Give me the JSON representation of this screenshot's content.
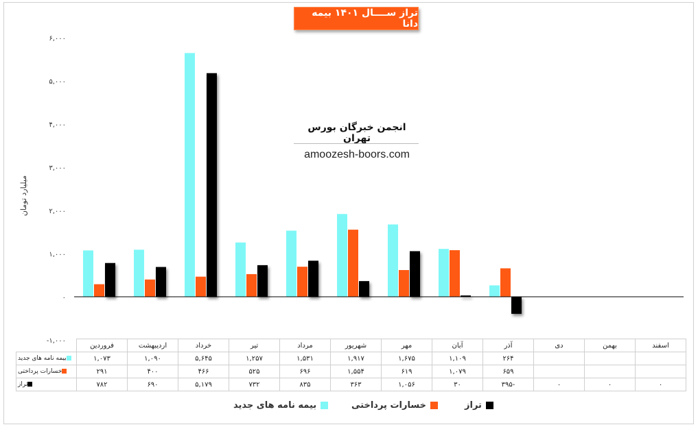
{
  "title": "تراز ســــال ۱۴۰۱ بیمه دانا",
  "watermark": {
    "line1": "انجمن خبرگان بورس تهران",
    "line2": "amoozesh-boors.com"
  },
  "colors": {
    "new_policies": "#7ff7f7",
    "claims": "#ff5a14",
    "balance": "#000000",
    "title_bg": "#ff5a14"
  },
  "chart_data": {
    "type": "bar",
    "ylabel": "میلیارد تومان",
    "ylim": [
      -1000,
      6000
    ],
    "yticks": [
      -1000,
      0,
      1000,
      2000,
      3000,
      4000,
      5000,
      6000
    ],
    "ytick_labels": [
      "-۱,۰۰۰",
      "۰",
      "۱,۰۰۰",
      "۲,۰۰۰",
      "۳,۰۰۰",
      "۴,۰۰۰",
      "۵,۰۰۰",
      "۶,۰۰۰"
    ],
    "categories": [
      "فروردین",
      "اردیبهشت",
      "خرداد",
      "تیر",
      "مرداد",
      "شهریور",
      "مهر",
      "آبان",
      "آذر",
      "دی",
      "بهمن",
      "اسفند"
    ],
    "series": [
      {
        "name": "بیمه نامه های جدید",
        "values": [
          1073,
          1090,
          5645,
          1257,
          1531,
          1917,
          1675,
          1109,
          264,
          null,
          null,
          null
        ],
        "labels": [
          "۱,۰۷۳",
          "۱,۰۹۰",
          "۵,۶۴۵",
          "۱,۲۵۷",
          "۱,۵۳۱",
          "۱,۹۱۷",
          "۱,۶۷۵",
          "۱,۱۰۹",
          "۲۶۴",
          "",
          "",
          ""
        ]
      },
      {
        "name": "خسارات پرداختی",
        "values": [
          291,
          400,
          466,
          525,
          696,
          1554,
          619,
          1079,
          659,
          null,
          null,
          null
        ],
        "labels": [
          "۲۹۱",
          "۴۰۰",
          "۴۶۶",
          "۵۲۵",
          "۶۹۶",
          "۱,۵۵۴",
          "۶۱۹",
          "۱,۰۷۹",
          "۶۵۹",
          "",
          "",
          ""
        ]
      },
      {
        "name": "تراز",
        "values": [
          782,
          690,
          5179,
          732,
          835,
          363,
          1056,
          30,
          -395,
          0,
          0,
          0
        ],
        "labels": [
          "۷۸۲",
          "۶۹۰",
          "۵,۱۷۹",
          "۷۳۲",
          "۸۳۵",
          "۳۶۳",
          "۱,۰۵۶",
          "۳۰",
          "-۳۹۵",
          "۰",
          "۰",
          "۰"
        ]
      }
    ],
    "legend": "bottom",
    "grid": false
  },
  "legend_items": [
    "بیمه نامه های جدید",
    "خسارات پرداختی",
    "تراز"
  ]
}
